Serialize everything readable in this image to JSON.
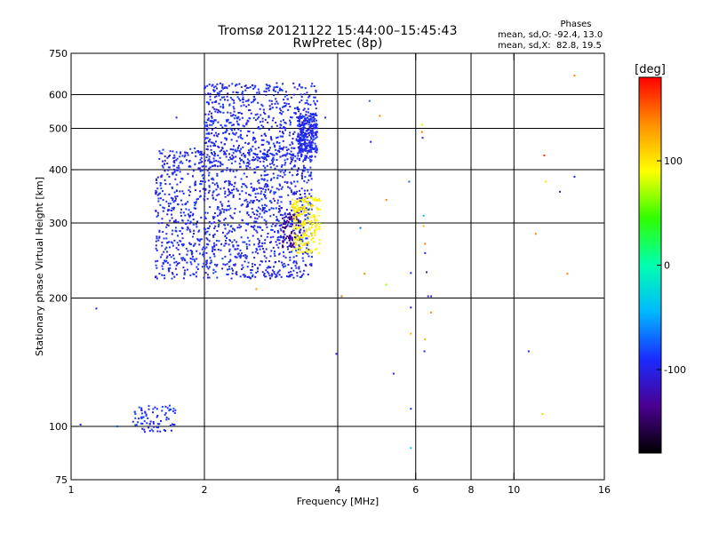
{
  "header": {
    "title_line1": "Tromsø 20121122 15:44:00–15:45:43",
    "title_line2": "RwPretec (8p)"
  },
  "phase_stats": {
    "heading": "Phases",
    "line_o": "mean, sd,O: -92.4, 13.0",
    "line_x": "mean, sd,X:  82.8, 19.5"
  },
  "colorbar": {
    "unit_label": "[deg]",
    "range": [
      -180,
      180
    ],
    "tick_values": [
      100,
      0,
      -100
    ],
    "tick_labels": [
      "100",
      "0",
      "-100"
    ],
    "colormap": [
      "#000000",
      "#4a0090",
      "#1a2bff",
      "#00b8ff",
      "#00ffb0",
      "#30ff00",
      "#ffff00",
      "#ff9000",
      "#ff0000"
    ]
  },
  "chart_data": {
    "type": "scatter",
    "title": "Tromsø 20121122 15:44:00–15:45:43",
    "subtitle": "RwPretec (8p)",
    "xlabel": "Frequency [MHz]",
    "ylabel": "Stationary phase Virtual Height [km]",
    "xscale": "log",
    "yscale": "log",
    "xlim": [
      1,
      16
    ],
    "ylim": [
      75,
      750
    ],
    "x_ticks": [
      1,
      2,
      4,
      6,
      8,
      10,
      16
    ],
    "x_tick_labels": [
      "1",
      "2",
      "4",
      "6",
      "8",
      "10",
      "16"
    ],
    "y_ticks": [
      75,
      100,
      200,
      300,
      400,
      500,
      600,
      750
    ],
    "y_tick_labels": [
      "75",
      "100",
      "200",
      "300",
      "400",
      "500",
      "600",
      "750"
    ],
    "x_gridlines": [
      2,
      4,
      6,
      8,
      10
    ],
    "y_gridlines": [
      100,
      200,
      300,
      400,
      500,
      600
    ],
    "color_variable": "phase [deg]",
    "point_clusters": [
      {
        "region": "main_trace_body",
        "x_range": [
          1.55,
          3.5
        ],
        "y_range": [
          222,
          450
        ],
        "phase": -95,
        "count": 1400
      },
      {
        "region": "upper_bands",
        "x_range": [
          2.0,
          3.6
        ],
        "y_range": [
          420,
          640
        ],
        "phase": -95,
        "count": 650
      },
      {
        "region": "dense_column_3.4MHz",
        "x_range": [
          3.25,
          3.6
        ],
        "y_range": [
          440,
          540
        ],
        "phase": -95,
        "count": 220
      },
      {
        "region": "dark_lower_patch",
        "x_range": [
          3.0,
          3.3
        ],
        "y_range": [
          262,
          320
        ],
        "phase": -135,
        "count": 80
      },
      {
        "region": "yellow_green_patch",
        "x_range": [
          3.15,
          3.65
        ],
        "y_range": [
          255,
          345
        ],
        "phase": 95,
        "count": 200
      },
      {
        "region": "low_E_trace",
        "x_range": [
          1.38,
          1.72
        ],
        "y_range": [
          97,
          112
        ],
        "phase": -92,
        "count": 80
      }
    ],
    "isolated_points": [
      {
        "x": 1.05,
        "y": 101,
        "phase": -95
      },
      {
        "x": 1.14,
        "y": 189,
        "phase": -95
      },
      {
        "x": 1.27,
        "y": 100,
        "phase": -80
      },
      {
        "x": 1.73,
        "y": 530,
        "phase": -95
      },
      {
        "x": 2.62,
        "y": 210,
        "phase": 130
      },
      {
        "x": 3.75,
        "y": 530,
        "phase": -95
      },
      {
        "x": 3.97,
        "y": 148,
        "phase": -100
      },
      {
        "x": 4.08,
        "y": 202,
        "phase": 150
      },
      {
        "x": 4.5,
        "y": 292,
        "phase": -70
      },
      {
        "x": 4.6,
        "y": 228,
        "phase": 140
      },
      {
        "x": 4.72,
        "y": 580,
        "phase": -70
      },
      {
        "x": 4.75,
        "y": 465,
        "phase": -95
      },
      {
        "x": 4.98,
        "y": 535,
        "phase": 140
      },
      {
        "x": 5.15,
        "y": 340,
        "phase": 140
      },
      {
        "x": 5.15,
        "y": 215,
        "phase": 70
      },
      {
        "x": 5.35,
        "y": 133,
        "phase": -100
      },
      {
        "x": 5.8,
        "y": 375,
        "phase": -70
      },
      {
        "x": 5.85,
        "y": 229,
        "phase": -95
      },
      {
        "x": 5.85,
        "y": 190,
        "phase": -100
      },
      {
        "x": 5.85,
        "y": 165,
        "phase": 120
      },
      {
        "x": 5.85,
        "y": 110,
        "phase": -95
      },
      {
        "x": 5.85,
        "y": 89,
        "phase": -30
      },
      {
        "x": 6.2,
        "y": 510,
        "phase": 80
      },
      {
        "x": 6.2,
        "y": 490,
        "phase": 140
      },
      {
        "x": 6.22,
        "y": 475,
        "phase": -95
      },
      {
        "x": 6.25,
        "y": 312,
        "phase": -40
      },
      {
        "x": 6.25,
        "y": 295,
        "phase": 120
      },
      {
        "x": 6.3,
        "y": 268,
        "phase": 140
      },
      {
        "x": 6.3,
        "y": 255,
        "phase": -95
      },
      {
        "x": 6.35,
        "y": 230,
        "phase": -100
      },
      {
        "x": 6.3,
        "y": 160,
        "phase": 120
      },
      {
        "x": 6.28,
        "y": 150,
        "phase": -95
      },
      {
        "x": 6.4,
        "y": 202,
        "phase": -100
      },
      {
        "x": 6.5,
        "y": 202,
        "phase": -95
      },
      {
        "x": 6.5,
        "y": 185,
        "phase": 140
      },
      {
        "x": 10.8,
        "y": 150,
        "phase": -95
      },
      {
        "x": 11.2,
        "y": 283,
        "phase": 140
      },
      {
        "x": 11.7,
        "y": 432,
        "phase": 160
      },
      {
        "x": 11.8,
        "y": 375,
        "phase": 100
      },
      {
        "x": 11.6,
        "y": 107,
        "phase": 110
      },
      {
        "x": 12.7,
        "y": 355,
        "phase": -100
      },
      {
        "x": 13.2,
        "y": 228,
        "phase": 140
      },
      {
        "x": 13.7,
        "y": 385,
        "phase": -95
      },
      {
        "x": 13.7,
        "y": 665,
        "phase": 140
      }
    ]
  }
}
